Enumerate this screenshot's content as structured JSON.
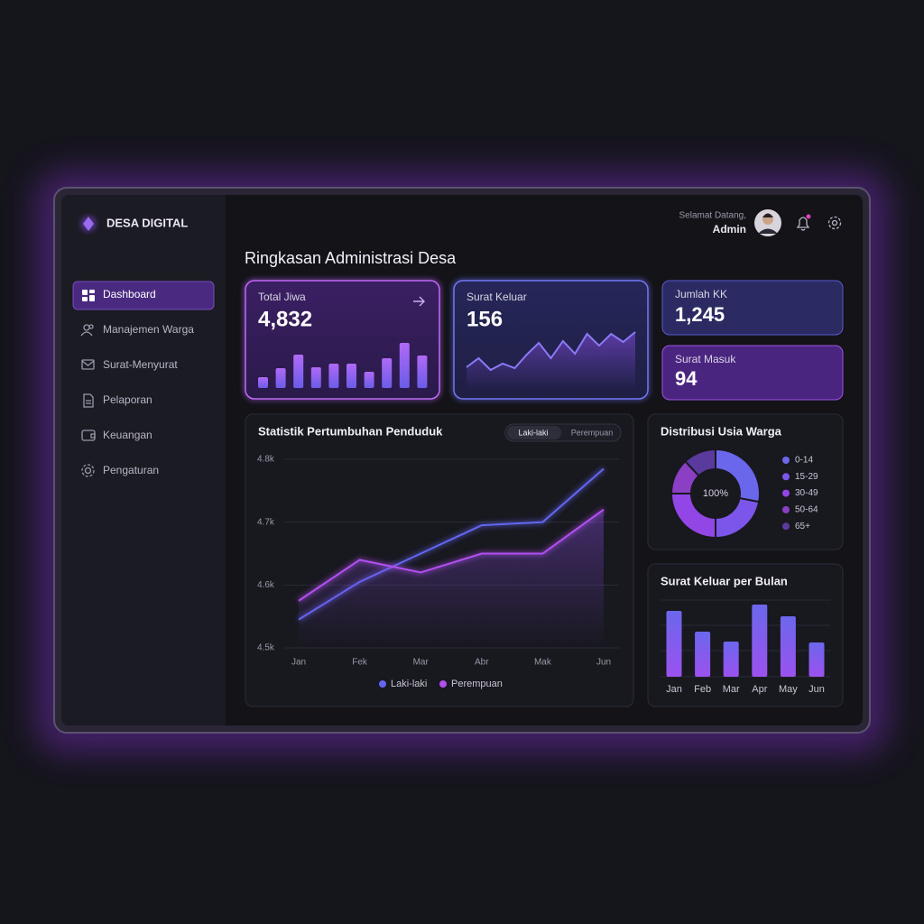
{
  "sidebar": {
    "brand": "DESA DIGITAL",
    "menu": [
      "Dashboard",
      "Manajemen Warga",
      "Surat-Menyurat",
      "Pelaporan",
      "Keuangan",
      "Pengaturan"
    ]
  },
  "header": {
    "greeting": "Selamat Datang,",
    "user": "Admin"
  },
  "title": "Ringkasan Administrasi Desa",
  "cards": {
    "total_jiwa": {
      "label": "Total Jiwa",
      "value": "4,832",
      "bars": [
        12,
        22,
        37,
        23,
        27,
        27,
        18,
        33,
        50,
        36
      ]
    },
    "surat_keluar": {
      "label": "Surat Keluar",
      "value": "156",
      "trend": [
        13,
        23,
        10,
        17,
        12,
        27,
        40,
        23,
        42,
        28,
        50,
        37,
        50,
        41,
        52
      ]
    },
    "jumlah_kk": {
      "label": "Jumlah KK",
      "value": "1,245"
    },
    "surat_masuk": {
      "label": "Surat Masuk",
      "value": "94"
    }
  },
  "chart_data": [
    {
      "type": "line",
      "title": "Statistik Pertumbuhan Penduduk",
      "categories": [
        "Jan",
        "Fek",
        "Mar",
        "Abr",
        "Mak",
        "Jun"
      ],
      "series": [
        {
          "name": "Laki-laki",
          "color": "#6366f1",
          "values": [
            4545,
            4605,
            4650,
            4695,
            4700,
            4785
          ]
        },
        {
          "name": "Perempuan",
          "color": "#b150f0",
          "values": [
            4575,
            4640,
            4620,
            4650,
            4650,
            4720
          ]
        }
      ],
      "ylim": [
        4500,
        4800
      ],
      "yticks": [
        {
          "value": 4500,
          "label": "4.5k"
        },
        {
          "value": 4600,
          "label": "4.6k"
        },
        {
          "value": 4700,
          "label": "4.7k"
        },
        {
          "value": 4800,
          "label": "4.8k"
        }
      ],
      "grid": true
    },
    {
      "type": "pie",
      "title": "Distribusi Usia Warga",
      "categories": [
        "0-14",
        "15-29",
        "30-49",
        "50-64",
        "65+"
      ],
      "values": [
        28,
        22,
        25,
        13,
        12
      ],
      "colors": [
        "#6b67ec",
        "#7c55ea",
        "#9346e6",
        "#8a3fc4",
        "#5b3a9e"
      ],
      "center_label": "100%"
    },
    {
      "type": "bar",
      "title": "Surat Keluar per Bulan",
      "categories": [
        "Jan",
        "Feb",
        "Mar",
        "Apr",
        "May",
        "Jun"
      ],
      "values": [
        73,
        50,
        39,
        80,
        67,
        38
      ],
      "color": "#7a5af0"
    }
  ]
}
